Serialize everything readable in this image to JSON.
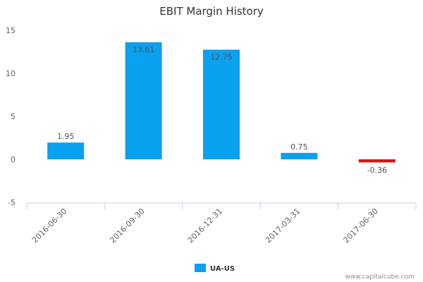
{
  "chart_data": {
    "type": "bar",
    "title": "EBIT Margin History",
    "xlabel": "",
    "ylabel": "",
    "categories": [
      "2016-06-30",
      "2016-09-30",
      "2016-12-31",
      "2017-03-31",
      "2017-06-30"
    ],
    "series": [
      {
        "name": "UA-US",
        "values": [
          1.95,
          13.61,
          12.75,
          0.75,
          -0.36
        ]
      }
    ],
    "data_labels": [
      "1.95",
      "13.61",
      "12.75",
      "0.75",
      "-0.36"
    ],
    "ylim": [
      -5,
      15
    ],
    "yticks": [
      15,
      10,
      5,
      0,
      -5
    ],
    "grid": false,
    "legend": "bottom-center",
    "colors": {
      "positive": "#0aa1ee",
      "negative": "#dd1111",
      "axis": "#c0d0e0"
    }
  },
  "credit": "www.capitalcube.com"
}
